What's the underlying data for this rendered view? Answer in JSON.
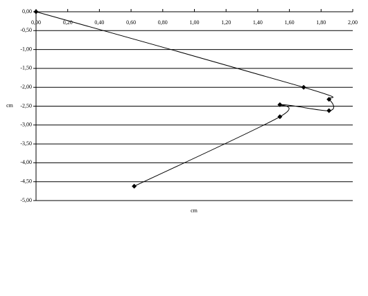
{
  "chart_data": {
    "type": "scatter",
    "x_label": "cm",
    "y_label": "cm",
    "series": [
      {
        "name": "cm",
        "color": "#000000",
        "x": [
          0,
          1.69,
          1.85,
          1.85,
          1.54,
          1.54,
          0.62
        ],
        "values": [
          0,
          -2.0,
          -2.32,
          -2.62,
          -2.46,
          -2.78,
          -4.62
        ]
      }
    ],
    "xlim": [
      0,
      2
    ],
    "ylim": [
      -5,
      0
    ],
    "xticks": [
      {
        "value": 0,
        "label": "0,00"
      },
      {
        "value": 0.2,
        "label": "0,20"
      },
      {
        "value": 0.4,
        "label": "0,40"
      },
      {
        "value": 0.6,
        "label": "0,60"
      },
      {
        "value": 0.8,
        "label": "0,80"
      },
      {
        "value": 1.0,
        "label": "1,00"
      },
      {
        "value": 1.2,
        "label": "1,20"
      },
      {
        "value": 1.4,
        "label": "1,40"
      },
      {
        "value": 1.6,
        "label": "1,60"
      },
      {
        "value": 1.8,
        "label": "1,80"
      },
      {
        "value": 2.0,
        "label": "2,00"
      }
    ],
    "yticks": [
      {
        "value": 0,
        "label": "0,00"
      },
      {
        "value": -0.5,
        "label": "-0,50"
      },
      {
        "value": -1.0,
        "label": "-1,00"
      },
      {
        "value": -1.5,
        "label": "-1,50"
      },
      {
        "value": -2.0,
        "label": "-2,00"
      },
      {
        "value": -2.5,
        "label": "-2,50"
      },
      {
        "value": -3.0,
        "label": "-3,00"
      },
      {
        "value": -3.5,
        "label": "-3,50"
      },
      {
        "value": -4.0,
        "label": "-4,00"
      },
      {
        "value": -4.5,
        "label": "-4,50"
      },
      {
        "value": -5.0,
        "label": "-5,00"
      }
    ],
    "grid": true,
    "smooth": true
  }
}
